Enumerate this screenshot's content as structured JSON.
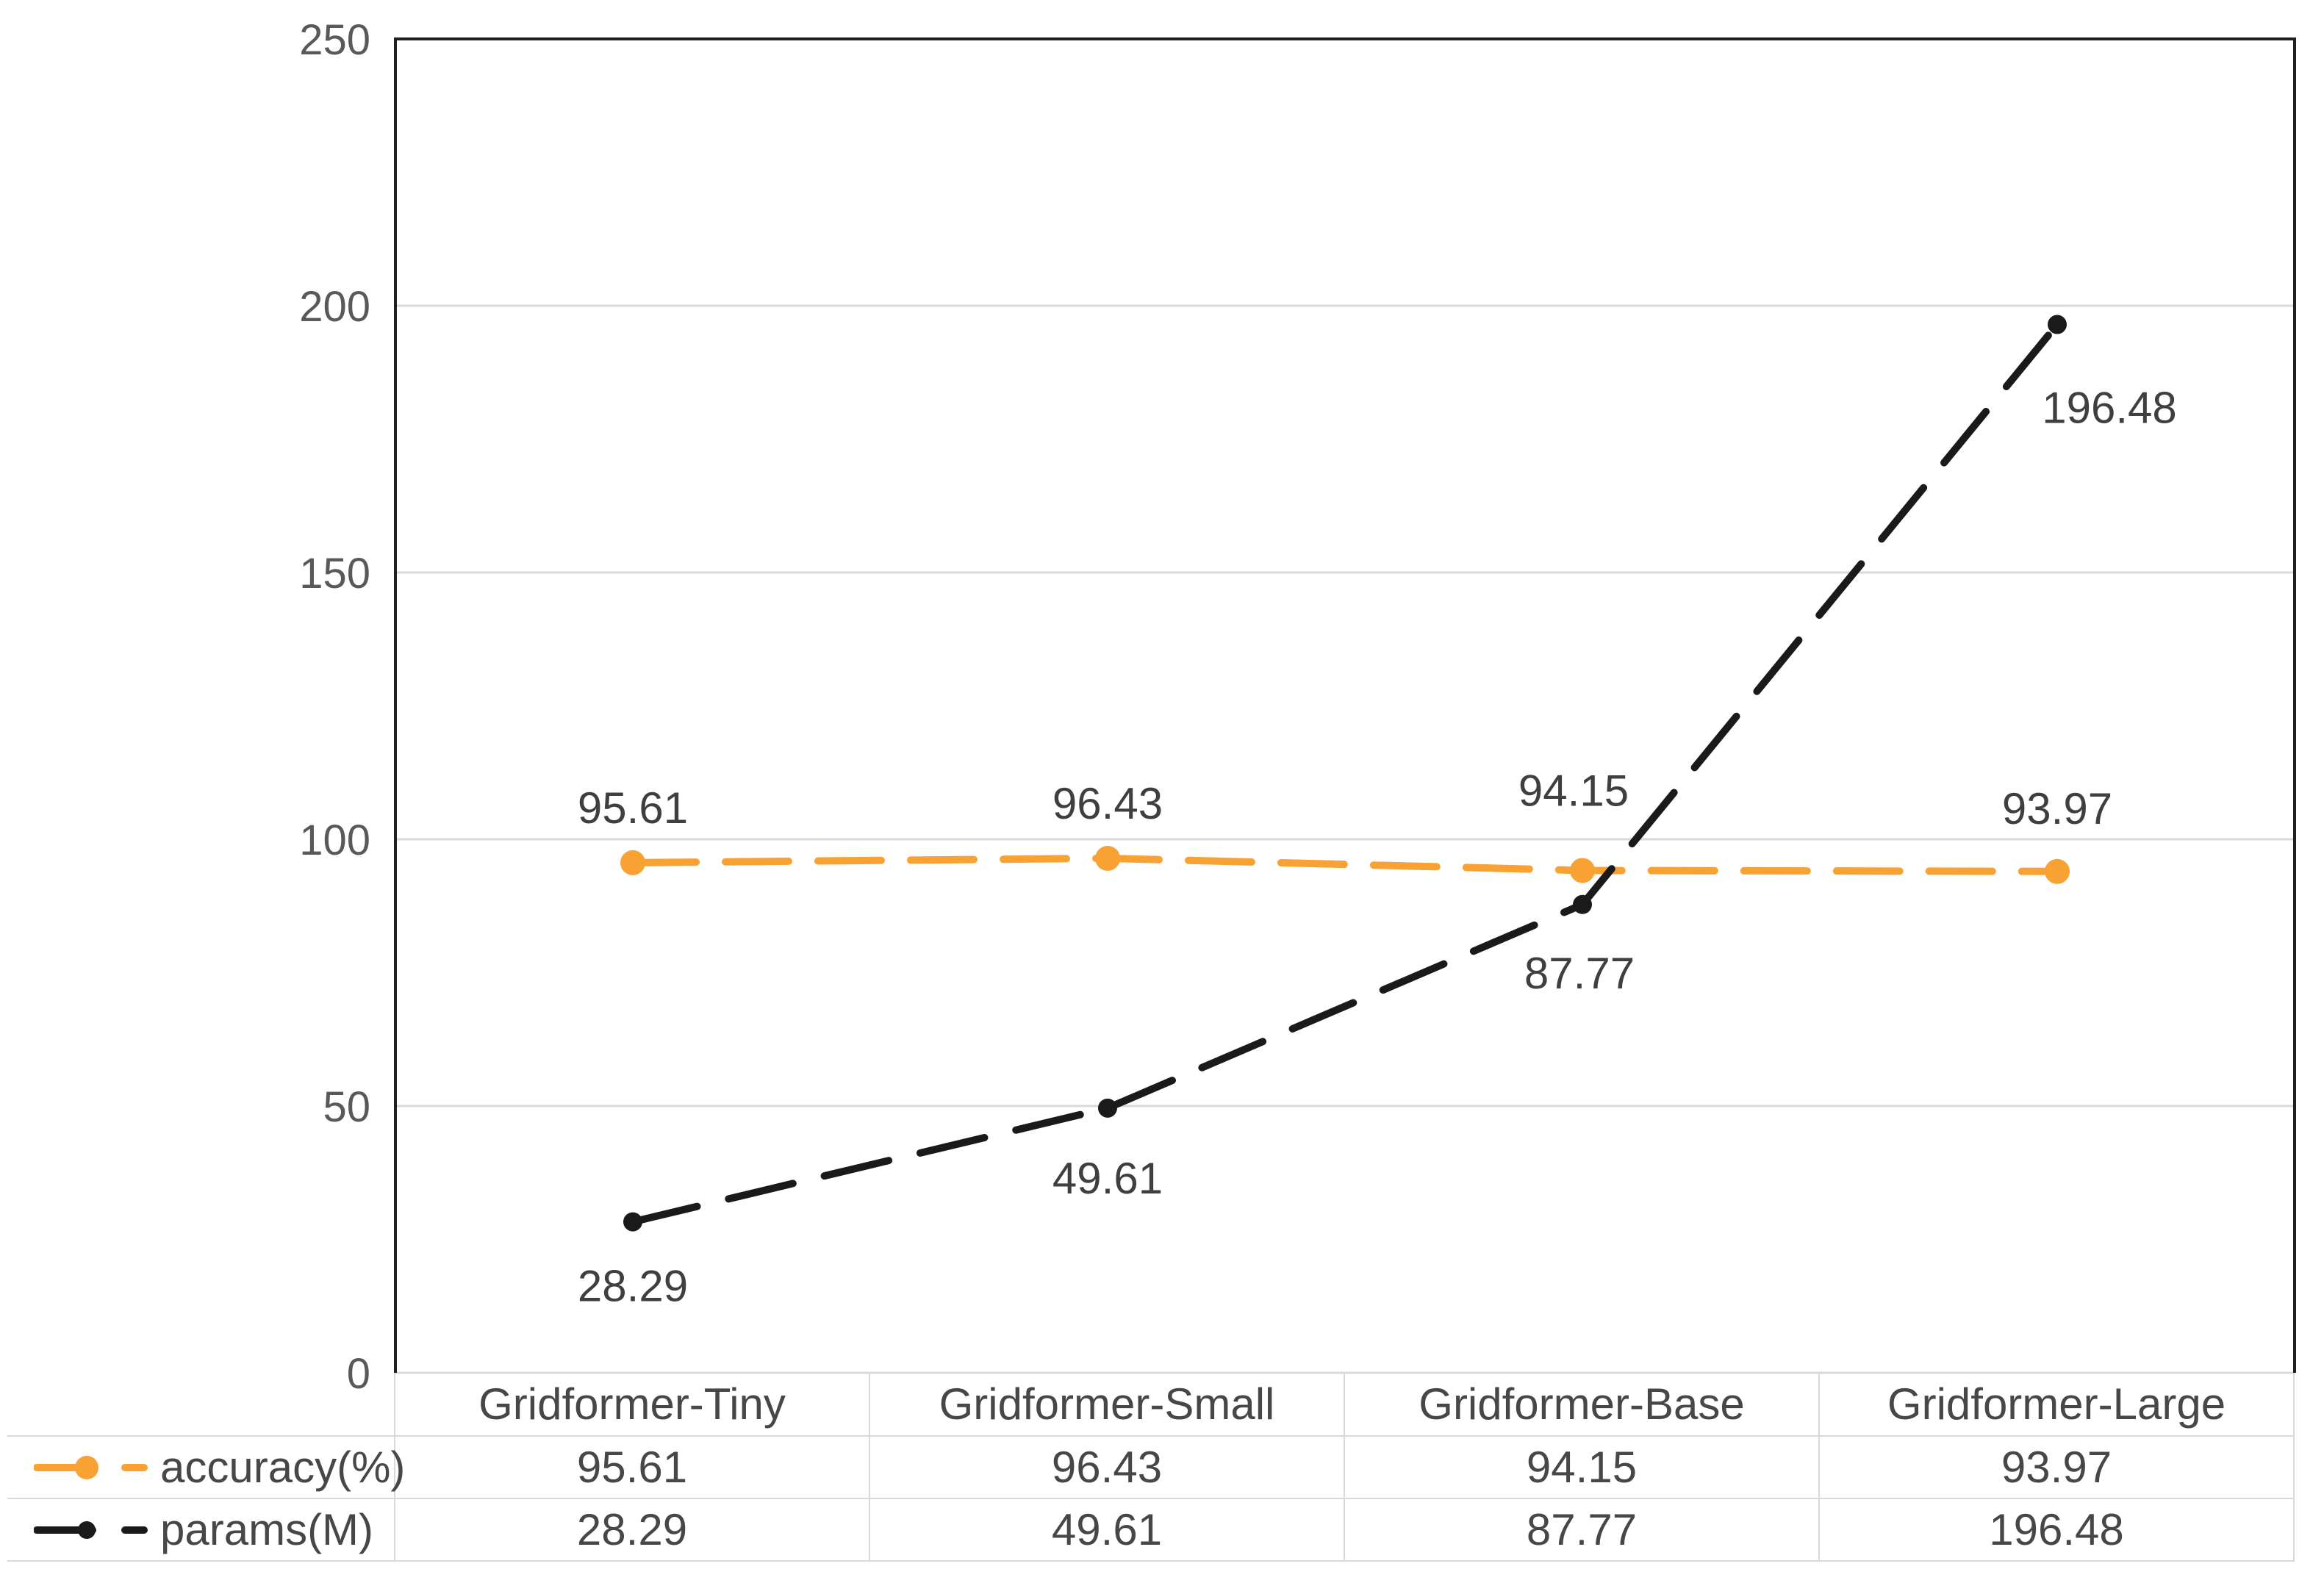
{
  "chart_data": {
    "type": "line",
    "title": "",
    "xlabel": "",
    "ylabel": "",
    "categories": [
      "Gridformer-Tiny",
      "Gridformer-Small",
      "Gridformer-Base",
      "Gridformer-Large"
    ],
    "series": [
      {
        "name": "accuracy(%)",
        "values": [
          95.61,
          96.43,
          94.15,
          93.97
        ],
        "color": "#F7A232",
        "marker": "circle",
        "line_style": "dashed"
      },
      {
        "name": "params(M)",
        "values": [
          28.29,
          49.61,
          87.77,
          196.48
        ],
        "color": "#1A1A1A",
        "marker": "circle",
        "line_style": "dashed"
      }
    ],
    "ylim": [
      0,
      250
    ],
    "yticks": [
      0,
      50,
      100,
      150,
      200,
      250
    ],
    "grid": true,
    "data_labels": true,
    "legend_position": "bottom-table"
  },
  "colors": {
    "background": "#FFFFFF",
    "grid_line": "#D9D9D9",
    "plot_border": "#1F1F1F",
    "axis_text": "#595959",
    "data_label_text": "#3F3F3F",
    "table_border": "#D9D9D9",
    "table_text": "#474747"
  }
}
